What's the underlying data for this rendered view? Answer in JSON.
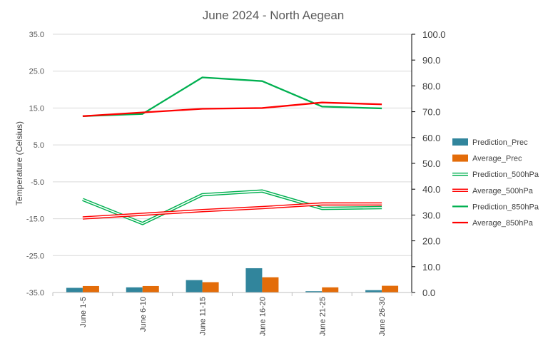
{
  "chart_data": {
    "type": "bar",
    "title": "June 2024 - North Aegean",
    "ylabel": "Temperature (Celsius)",
    "xlabel": "",
    "categories": [
      "June 1-5",
      "June 6-10",
      "June 11-15",
      "June 16-20",
      "June 21-25",
      "June 26-30"
    ],
    "y_left": {
      "min": -35,
      "max": 35,
      "ticks": [
        35.0,
        25.0,
        15.0,
        5.0,
        -5.0,
        -15.0,
        -25.0,
        -35.0
      ]
    },
    "y_right": {
      "min": 0,
      "max": 100,
      "ticks": [
        100.0,
        90.0,
        80.0,
        70.0,
        60.0,
        50.0,
        40.0,
        30.0,
        20.0,
        10.0,
        0.0
      ]
    },
    "grid": "horizontal",
    "legend_position": "right",
    "bar_series": [
      {
        "name": "Prediction_Prec",
        "axis": "right",
        "color": "#31859C",
        "values": [
          1.8,
          2.0,
          4.8,
          9.4,
          0.5,
          0.9
        ]
      },
      {
        "name": "Average_Prec",
        "axis": "right",
        "color": "#E36C09",
        "values": [
          2.5,
          2.5,
          4.0,
          5.9,
          2.0,
          2.6
        ]
      }
    ],
    "line_series": [
      {
        "name": "Prediction_500hPa",
        "axis": "left",
        "color": "#00B050",
        "style": "double",
        "values": [
          -9.8,
          -16.3,
          -8.5,
          -7.5,
          -12.2,
          -12.0
        ]
      },
      {
        "name": "Average_500hPa",
        "axis": "left",
        "color": "#FF0000",
        "style": "double",
        "values": [
          -14.8,
          -13.8,
          -12.8,
          -12.0,
          -11.0,
          -11.0
        ]
      },
      {
        "name": "Prediction_850hPa",
        "axis": "left",
        "color": "#00B050",
        "style": "single",
        "values": [
          12.8,
          13.4,
          23.3,
          22.3,
          15.4,
          14.9
        ]
      },
      {
        "name": "Average_850hPa",
        "axis": "left",
        "color": "#FF0000",
        "style": "single",
        "values": [
          12.8,
          13.8,
          14.8,
          15.0,
          16.5,
          16.0
        ]
      }
    ]
  }
}
